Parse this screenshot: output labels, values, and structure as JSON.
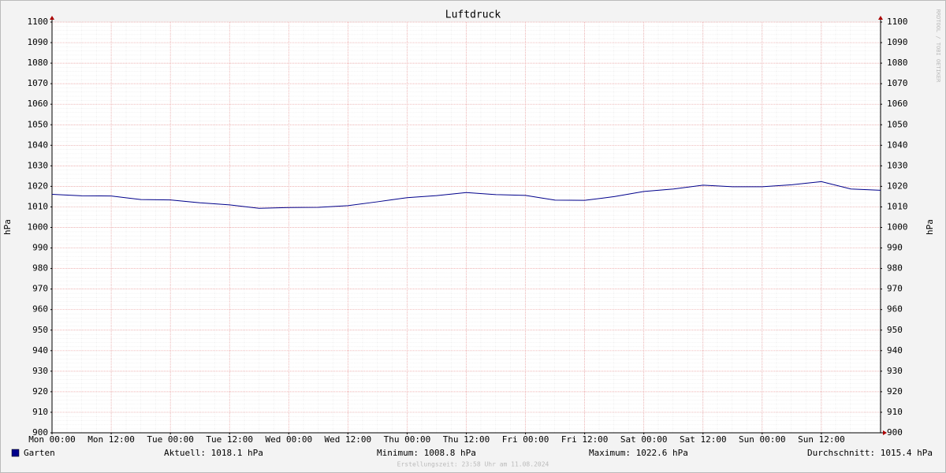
{
  "chart_data": {
    "type": "line",
    "title": "Luftdruck",
    "y_label": "hPa",
    "y2_label": "hPa",
    "watermark": "RRDTOOL / TOBI OETIKER",
    "x": [
      0,
      6,
      12,
      18,
      24,
      30,
      36,
      42,
      48,
      54,
      60,
      66,
      72,
      78,
      84,
      90,
      96,
      102,
      108,
      114,
      120,
      126,
      132,
      138,
      144,
      150,
      156,
      162,
      168
    ],
    "xlim": [
      0,
      168
    ],
    "xticks": [
      {
        "value": 0,
        "label": "Mon 00:00"
      },
      {
        "value": 12,
        "label": "Mon 12:00"
      },
      {
        "value": 24,
        "label": "Tue 00:00"
      },
      {
        "value": 36,
        "label": "Tue 12:00"
      },
      {
        "value": 48,
        "label": "Wed 00:00"
      },
      {
        "value": 60,
        "label": "Wed 12:00"
      },
      {
        "value": 72,
        "label": "Thu 00:00"
      },
      {
        "value": 84,
        "label": "Thu 12:00"
      },
      {
        "value": 96,
        "label": "Fri 00:00"
      },
      {
        "value": 108,
        "label": "Fri 12:00"
      },
      {
        "value": 120,
        "label": "Sat 00:00"
      },
      {
        "value": 132,
        "label": "Sat 12:00"
      },
      {
        "value": 144,
        "label": "Sun 00:00"
      },
      {
        "value": 156,
        "label": "Sun 12:00"
      }
    ],
    "ylim": [
      900,
      1100
    ],
    "yticks": [
      900,
      910,
      920,
      930,
      940,
      950,
      960,
      970,
      980,
      990,
      1000,
      1010,
      1020,
      1030,
      1040,
      1050,
      1060,
      1070,
      1080,
      1090,
      1100
    ],
    "y2lim": [
      900,
      1100
    ],
    "y2ticks": [
      900,
      910,
      920,
      930,
      940,
      950,
      960,
      970,
      980,
      990,
      1000,
      1010,
      1020,
      1030,
      1040,
      1050,
      1060,
      1070,
      1080,
      1090,
      1100
    ],
    "grid": true,
    "series": [
      {
        "name": "Garten",
        "color": "#00008b",
        "values": [
          1016.1,
          1015.4,
          1015.3,
          1013.6,
          1013.4,
          1012.0,
          1011.0,
          1009.3,
          1009.7,
          1009.8,
          1010.6,
          1012.5,
          1014.5,
          1015.5,
          1017.0,
          1016.0,
          1015.6,
          1013.3,
          1013.2,
          1015.0,
          1017.5,
          1018.7,
          1020.6,
          1019.8,
          1019.8,
          1020.8,
          1022.3,
          1018.7,
          1018.1
        ]
      }
    ],
    "stats": [
      "Aktuell: 1018.1 hPa",
      "Minimum: 1008.8 hPa",
      "Maximum: 1022.6 hPa",
      "Durchschnitt: 1015.4 hPa"
    ],
    "footer": "Erstellungszeit: 23:58 Uhr am 11.08.2024"
  }
}
